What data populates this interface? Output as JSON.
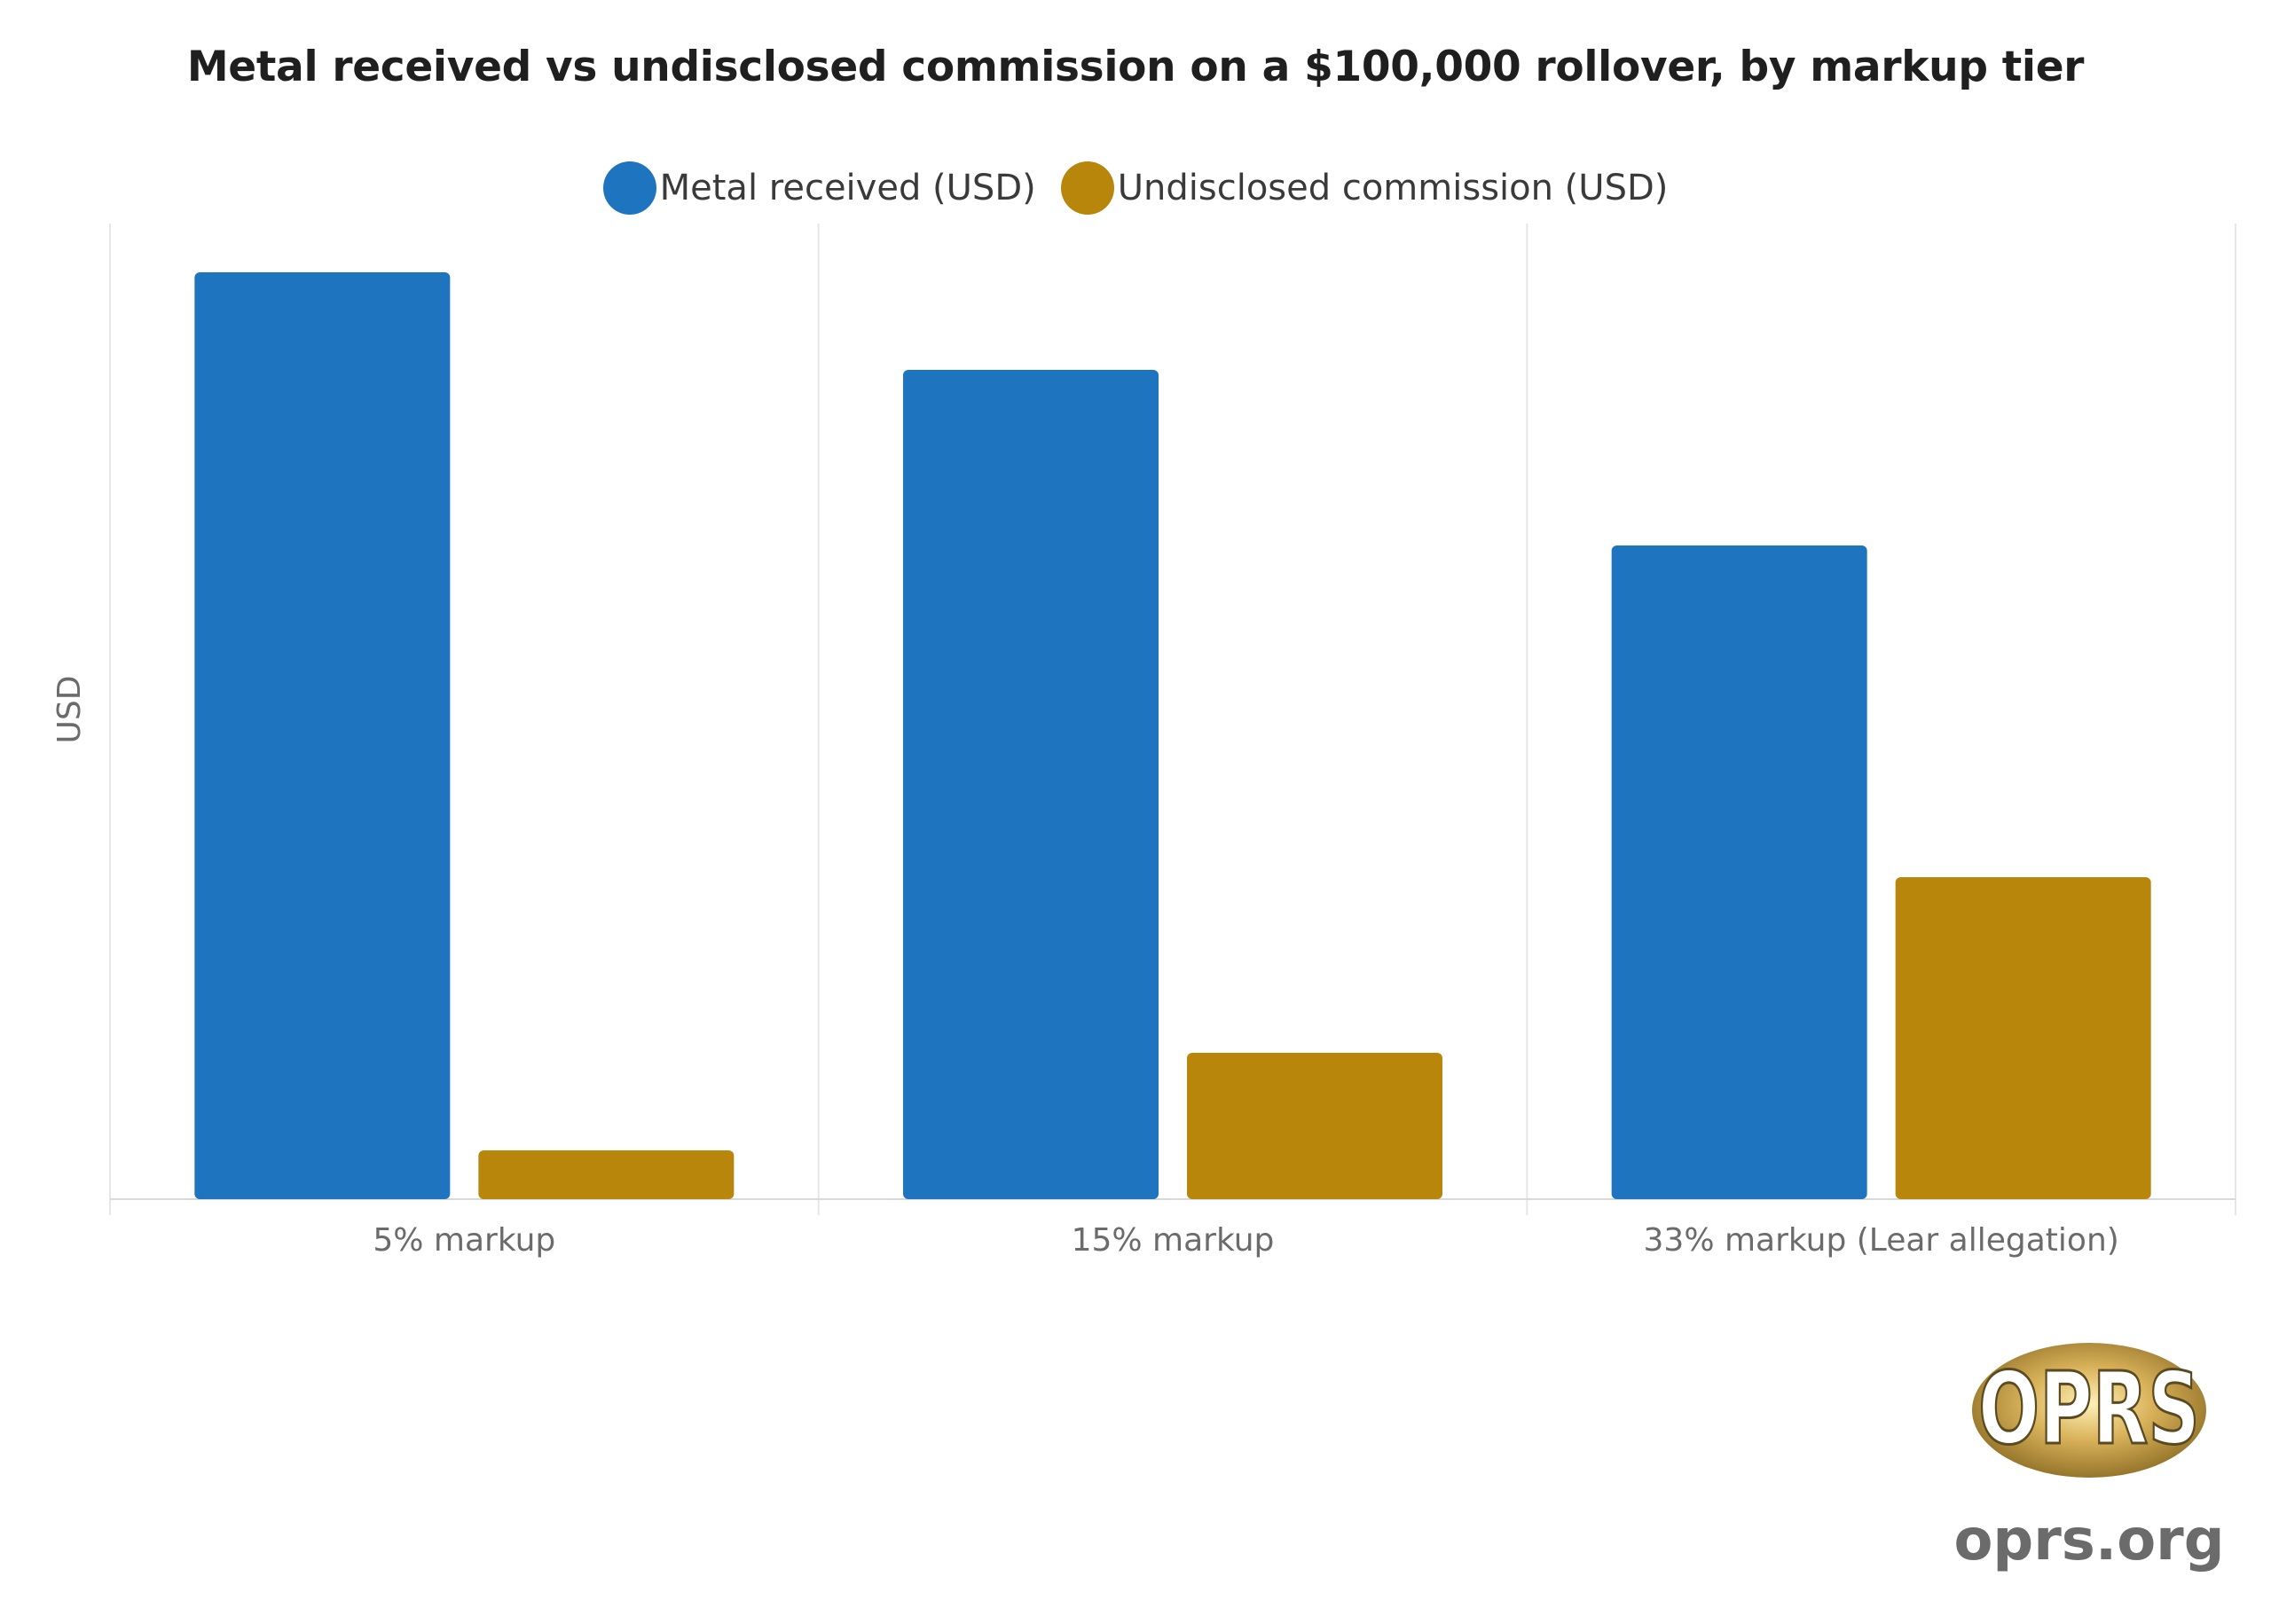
{
  "chart_data": {
    "type": "bar",
    "title": "Metal received vs undisclosed commission on a $100,000 rollover, by markup tier",
    "ylabel": "USD",
    "xlabel": "",
    "categories": [
      "5% markup",
      "15% markup",
      "33% markup (Lear allegation)"
    ],
    "series": [
      {
        "name": "Metal received (USD)",
        "color": "#1f74bf",
        "values": [
          95000,
          85000,
          67000
        ]
      },
      {
        "name": "Undisclosed commission (USD)",
        "color": "#b8860b",
        "values": [
          5000,
          15000,
          33000
        ]
      }
    ],
    "ylim": [
      0,
      100000
    ],
    "grid": true,
    "legend_position": "top"
  },
  "watermark": {
    "logo_text": "OPRS",
    "site": "oprs.org"
  }
}
